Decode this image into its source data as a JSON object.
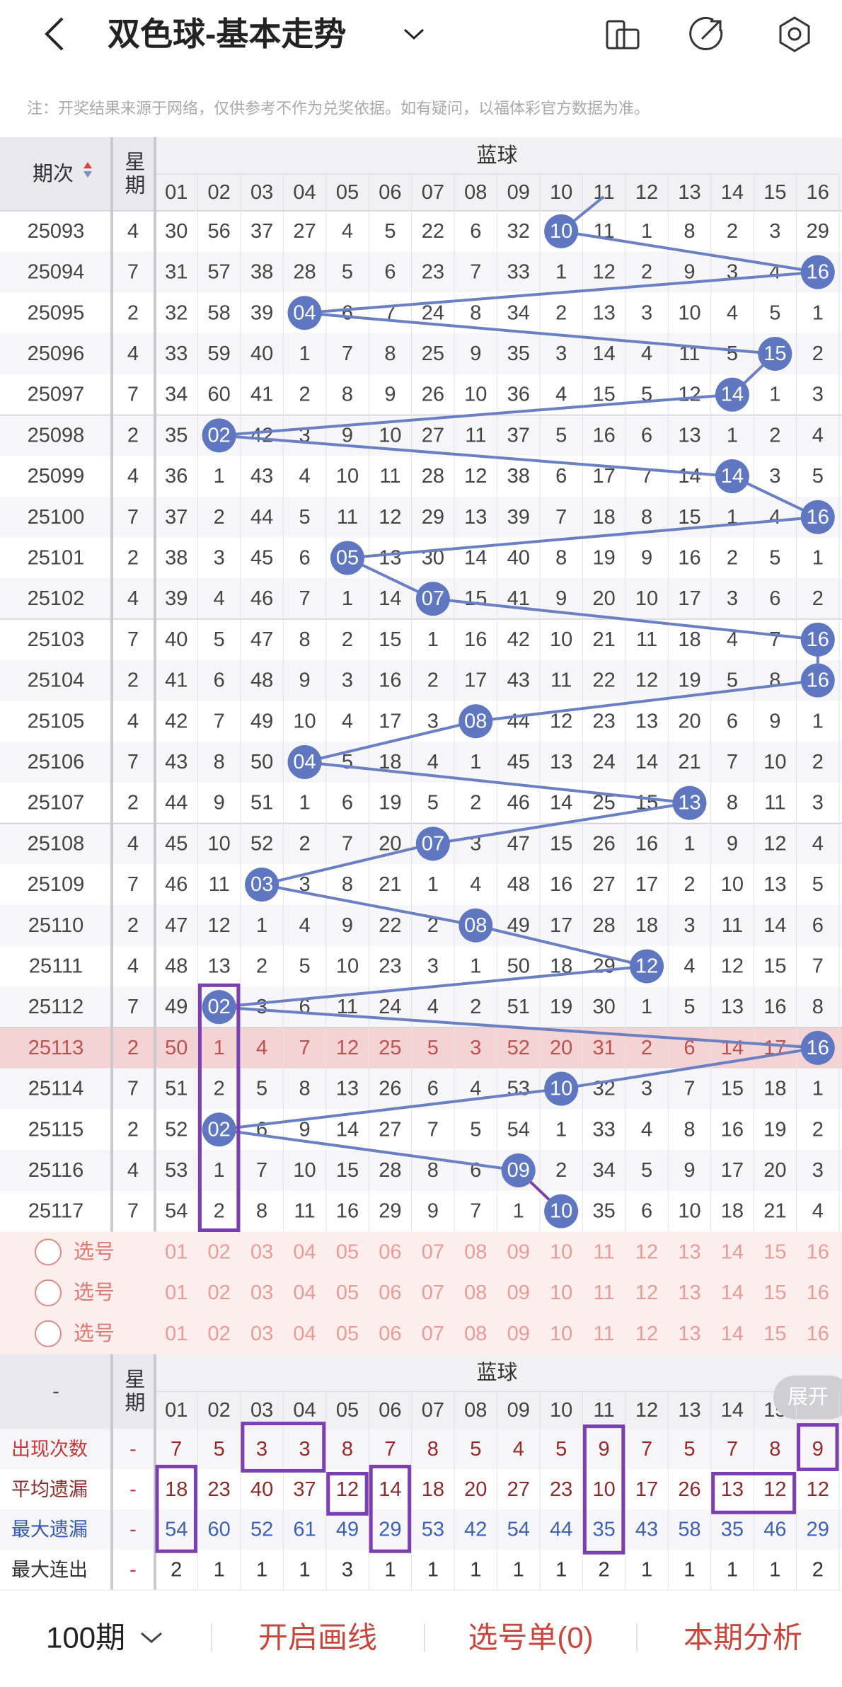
{
  "header": {
    "title": "双色球-基本走势",
    "notice": "注：开奖结果来源于网络，仅供参考不作为兑奖依据。如有疑问，以福体彩官方数据为准。"
  },
  "table": {
    "period_label": "期次",
    "weekday_label": "星期",
    "group_label": "蓝球",
    "columns": [
      "01",
      "02",
      "03",
      "04",
      "05",
      "06",
      "07",
      "08",
      "09",
      "10",
      "11",
      "12",
      "13",
      "14",
      "15",
      "16"
    ],
    "rows": [
      {
        "period": "25093",
        "weekday": 4,
        "ball": "10",
        "cells": [
          30,
          56,
          37,
          27,
          4,
          5,
          22,
          6,
          32,
          null,
          11,
          1,
          8,
          2,
          3,
          29
        ]
      },
      {
        "period": "25094",
        "weekday": 7,
        "ball": "16",
        "cells": [
          31,
          57,
          38,
          28,
          5,
          6,
          23,
          7,
          33,
          1,
          12,
          2,
          9,
          3,
          4,
          null
        ]
      },
      {
        "period": "25095",
        "weekday": 2,
        "ball": "04",
        "cells": [
          32,
          58,
          39,
          null,
          6,
          7,
          24,
          8,
          34,
          2,
          13,
          3,
          10,
          4,
          5,
          1
        ]
      },
      {
        "period": "25096",
        "weekday": 4,
        "ball": "15",
        "cells": [
          33,
          59,
          40,
          1,
          7,
          8,
          25,
          9,
          35,
          3,
          14,
          4,
          11,
          5,
          null,
          2
        ]
      },
      {
        "period": "25097",
        "weekday": 7,
        "ball": "14",
        "cells": [
          34,
          60,
          41,
          2,
          8,
          9,
          26,
          10,
          36,
          4,
          15,
          5,
          12,
          null,
          1,
          3
        ]
      },
      {
        "period": "25098",
        "weekday": 2,
        "ball": "02",
        "cells": [
          35,
          null,
          42,
          3,
          9,
          10,
          27,
          11,
          37,
          5,
          16,
          6,
          13,
          1,
          2,
          4
        ]
      },
      {
        "period": "25099",
        "weekday": 4,
        "ball": "14",
        "cells": [
          36,
          1,
          43,
          4,
          10,
          11,
          28,
          12,
          38,
          6,
          17,
          7,
          14,
          null,
          3,
          5
        ]
      },
      {
        "period": "25100",
        "weekday": 7,
        "ball": "16",
        "cells": [
          37,
          2,
          44,
          5,
          11,
          12,
          29,
          13,
          39,
          7,
          18,
          8,
          15,
          1,
          4,
          null
        ]
      },
      {
        "period": "25101",
        "weekday": 2,
        "ball": "05",
        "cells": [
          38,
          3,
          45,
          6,
          null,
          13,
          30,
          14,
          40,
          8,
          19,
          9,
          16,
          2,
          5,
          1
        ]
      },
      {
        "period": "25102",
        "weekday": 4,
        "ball": "07",
        "cells": [
          39,
          4,
          46,
          7,
          1,
          14,
          null,
          15,
          41,
          9,
          20,
          10,
          17,
          3,
          6,
          2
        ]
      },
      {
        "period": "25103",
        "weekday": 7,
        "ball": "16",
        "cells": [
          40,
          5,
          47,
          8,
          2,
          15,
          1,
          16,
          42,
          10,
          21,
          11,
          18,
          4,
          7,
          null
        ]
      },
      {
        "period": "25104",
        "weekday": 2,
        "ball": "16",
        "cells": [
          41,
          6,
          48,
          9,
          3,
          16,
          2,
          17,
          43,
          11,
          22,
          12,
          19,
          5,
          8,
          null
        ]
      },
      {
        "period": "25105",
        "weekday": 4,
        "ball": "08",
        "cells": [
          42,
          7,
          49,
          10,
          4,
          17,
          3,
          null,
          44,
          12,
          23,
          13,
          20,
          6,
          9,
          1
        ]
      },
      {
        "period": "25106",
        "weekday": 7,
        "ball": "04",
        "cells": [
          43,
          8,
          50,
          null,
          5,
          18,
          4,
          1,
          45,
          13,
          24,
          14,
          21,
          7,
          10,
          2
        ]
      },
      {
        "period": "25107",
        "weekday": 2,
        "ball": "13",
        "cells": [
          44,
          9,
          51,
          1,
          6,
          19,
          5,
          2,
          46,
          14,
          25,
          15,
          null,
          8,
          11,
          3
        ]
      },
      {
        "period": "25108",
        "weekday": 4,
        "ball": "07",
        "cells": [
          45,
          10,
          52,
          2,
          7,
          20,
          null,
          3,
          47,
          15,
          26,
          16,
          1,
          9,
          12,
          4
        ]
      },
      {
        "period": "25109",
        "weekday": 7,
        "ball": "03",
        "cells": [
          46,
          11,
          null,
          3,
          8,
          21,
          1,
          4,
          48,
          16,
          27,
          17,
          2,
          10,
          13,
          5
        ]
      },
      {
        "period": "25110",
        "weekday": 2,
        "ball": "08",
        "cells": [
          47,
          12,
          1,
          4,
          9,
          22,
          2,
          null,
          49,
          17,
          28,
          18,
          3,
          11,
          14,
          6
        ]
      },
      {
        "period": "25111",
        "weekday": 4,
        "ball": "12",
        "cells": [
          48,
          13,
          2,
          5,
          10,
          23,
          3,
          1,
          50,
          18,
          29,
          null,
          4,
          12,
          15,
          7
        ]
      },
      {
        "period": "25112",
        "weekday": 7,
        "ball": "02",
        "cells": [
          49,
          null,
          3,
          6,
          11,
          24,
          4,
          2,
          51,
          19,
          30,
          1,
          5,
          13,
          16,
          8
        ]
      },
      {
        "period": "25113",
        "weekday": 2,
        "ball": "16",
        "cells": [
          50,
          1,
          4,
          7,
          12,
          25,
          5,
          3,
          52,
          20,
          31,
          2,
          6,
          14,
          17,
          null
        ]
      },
      {
        "period": "25114",
        "weekday": 7,
        "ball": "10",
        "cells": [
          51,
          2,
          5,
          8,
          13,
          26,
          6,
          4,
          53,
          null,
          32,
          3,
          7,
          15,
          18,
          1
        ]
      },
      {
        "period": "25115",
        "weekday": 2,
        "ball": "02",
        "cells": [
          52,
          null,
          6,
          9,
          14,
          27,
          7,
          5,
          54,
          1,
          33,
          4,
          8,
          16,
          19,
          2
        ]
      },
      {
        "period": "25116",
        "weekday": 4,
        "ball": "09",
        "cells": [
          53,
          1,
          7,
          10,
          15,
          28,
          8,
          6,
          null,
          2,
          34,
          5,
          9,
          17,
          20,
          3
        ]
      },
      {
        "period": "25117",
        "weekday": 7,
        "ball": "10",
        "cells": [
          54,
          2,
          8,
          11,
          16,
          29,
          9,
          7,
          1,
          null,
          35,
          6,
          10,
          18,
          21,
          4
        ]
      }
    ]
  },
  "select": {
    "label": "选号"
  },
  "stats": {
    "corner": "-",
    "weekday_label": "星期",
    "group_label": "蓝球",
    "expand": "展开",
    "rows": [
      {
        "label": "出现次数",
        "dash": "-",
        "values": [
          7,
          5,
          3,
          3,
          8,
          7,
          8,
          5,
          4,
          5,
          9,
          7,
          5,
          7,
          8,
          9
        ]
      },
      {
        "label": "平均遗漏",
        "dash": "-",
        "values": [
          18,
          23,
          40,
          37,
          12,
          14,
          18,
          20,
          27,
          23,
          10,
          17,
          26,
          13,
          12,
          12
        ]
      },
      {
        "label": "最大遗漏",
        "dash": "-",
        "values": [
          54,
          60,
          52,
          61,
          49,
          29,
          53,
          42,
          54,
          44,
          35,
          43,
          58,
          35,
          46,
          29
        ]
      },
      {
        "label": "最大连出",
        "dash": "-",
        "values": [
          2,
          1,
          1,
          1,
          3,
          1,
          1,
          1,
          1,
          1,
          2,
          1,
          1,
          1,
          1,
          2
        ]
      }
    ]
  },
  "footer": {
    "period": "100期",
    "buttons": [
      "开启画线",
      "选号单(0)",
      "本期分析"
    ]
  }
}
